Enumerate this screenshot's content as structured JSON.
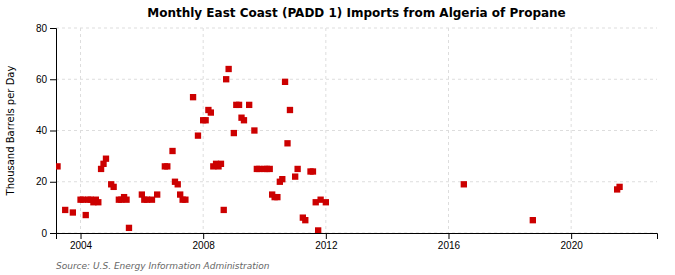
{
  "chart_data": {
    "type": "scatter",
    "title": "Monthly East Coast (PADD 1) Imports from Algeria of Propane",
    "ylabel": "Thousand Barrels per Day",
    "source": "Source: U.S. Energy Information Administration",
    "color": "#cc0000",
    "marker": "square",
    "grid": true,
    "xlim": [
      2003.2,
      2022.8
    ],
    "xticks": [
      2004,
      2008,
      2012,
      2016,
      2020
    ],
    "ylim": [
      0,
      80
    ],
    "yticks": [
      0,
      20,
      40,
      60,
      80
    ],
    "x": [
      2003.25,
      2003.5,
      2003.75,
      2004.0,
      2004.08,
      2004.17,
      2004.25,
      2004.33,
      2004.42,
      2004.5,
      2004.58,
      2004.67,
      2004.75,
      2004.83,
      2005.0,
      2005.08,
      2005.25,
      2005.33,
      2005.42,
      2005.5,
      2005.58,
      2006.0,
      2006.08,
      2006.17,
      2006.33,
      2006.5,
      2006.75,
      2006.83,
      2007.0,
      2007.08,
      2007.17,
      2007.25,
      2007.33,
      2007.42,
      2007.67,
      2007.83,
      2008.0,
      2008.08,
      2008.17,
      2008.25,
      2008.33,
      2008.42,
      2008.5,
      2008.58,
      2008.67,
      2008.75,
      2008.83,
      2009.0,
      2009.08,
      2009.17,
      2009.25,
      2009.33,
      2009.5,
      2009.67,
      2009.75,
      2009.83,
      2010.0,
      2010.08,
      2010.17,
      2010.25,
      2010.33,
      2010.42,
      2010.5,
      2010.58,
      2010.67,
      2010.75,
      2010.83,
      2011.0,
      2011.08,
      2011.25,
      2011.33,
      2011.5,
      2011.58,
      2011.67,
      2011.75,
      2011.83,
      2012.0,
      2016.5,
      2018.75,
      2021.5,
      2021.58
    ],
    "values": [
      26,
      9,
      8,
      13,
      13,
      7,
      13,
      13,
      12,
      13,
      12,
      25,
      27,
      29,
      19,
      18,
      13,
      13,
      14,
      13,
      2,
      15,
      13,
      13,
      13,
      15,
      26,
      26,
      32,
      20,
      19,
      15,
      13,
      13,
      53,
      38,
      44,
      44,
      48,
      47,
      26,
      27,
      26,
      27,
      9,
      60,
      64,
      39,
      50,
      50,
      45,
      44,
      50,
      40,
      25,
      25,
      25,
      25,
      25,
      15,
      14,
      14,
      20,
      21,
      59,
      35,
      48,
      22,
      25,
      6,
      5,
      24,
      24,
      12,
      1,
      13,
      12,
      19,
      5,
      17,
      18
    ]
  }
}
